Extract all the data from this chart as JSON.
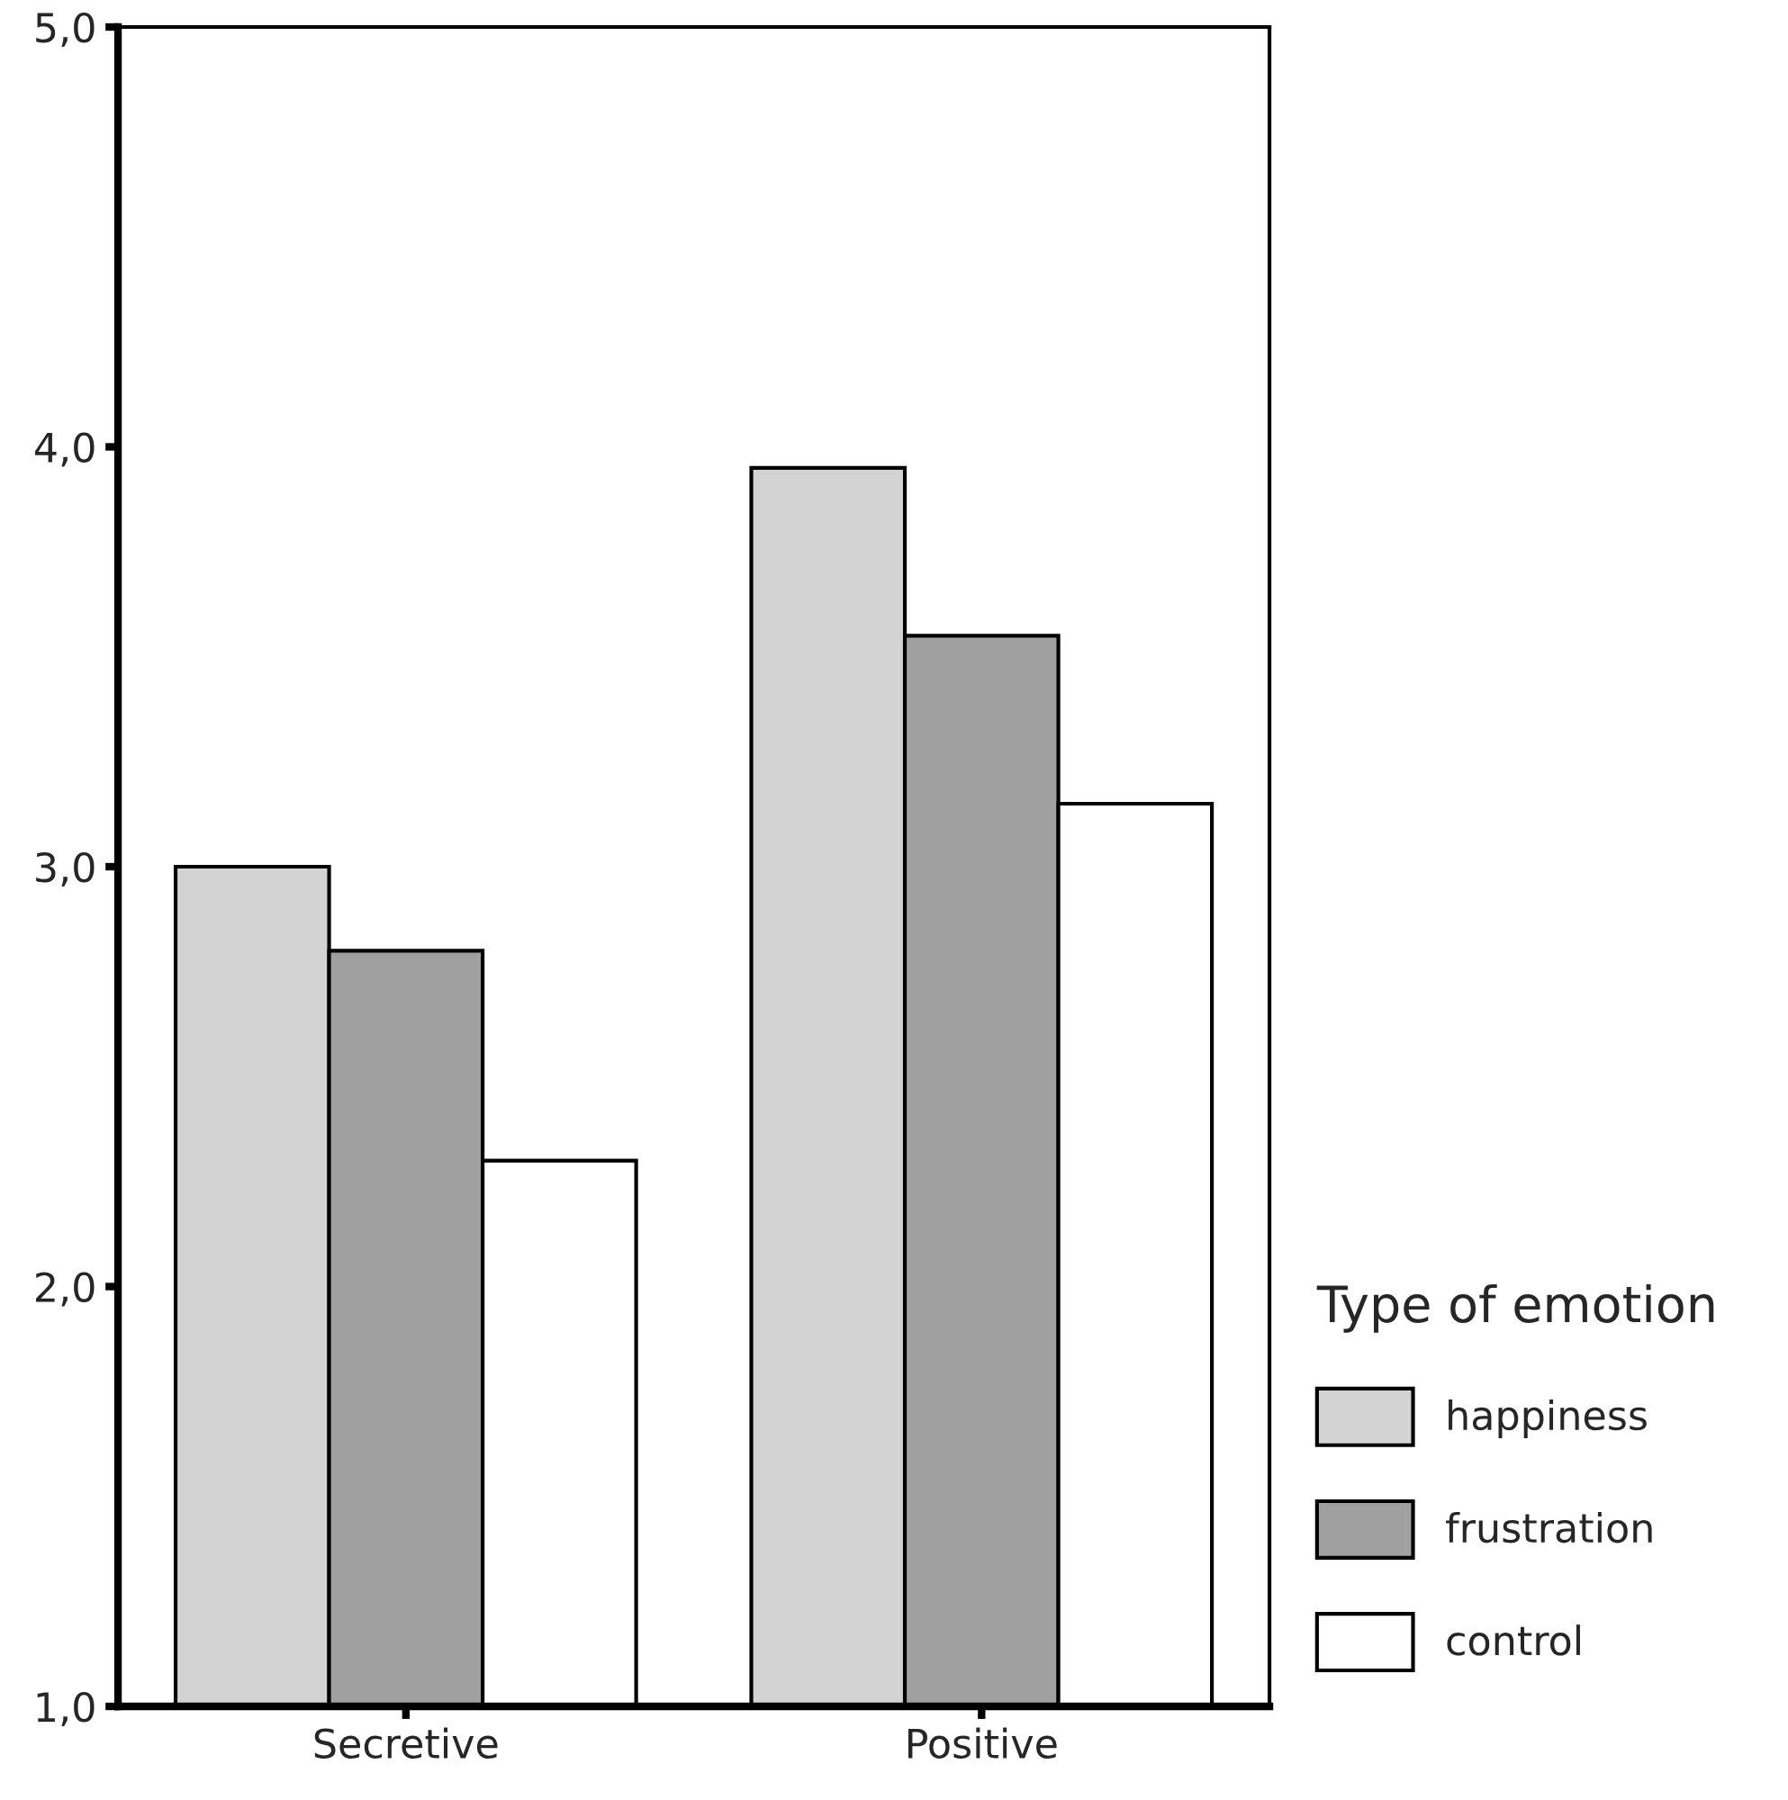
{
  "chart_data": {
    "type": "bar",
    "categories": [
      "Secretive",
      "Positive"
    ],
    "series": [
      {
        "name": "happiness",
        "color": "#d3d3d3",
        "values": [
          3.0,
          3.95
        ]
      },
      {
        "name": "frustration",
        "color": "#a0a0a0",
        "values": [
          2.8,
          3.55
        ]
      },
      {
        "name": "control",
        "color": "#ffffff",
        "values": [
          2.3,
          3.15
        ]
      }
    ],
    "ylim": [
      1.0,
      5.0
    ],
    "yticks": [
      {
        "value": 1.0,
        "label": "1,0"
      },
      {
        "value": 2.0,
        "label": "2,0"
      },
      {
        "value": 3.0,
        "label": "3,0"
      },
      {
        "value": 4.0,
        "label": "4,0"
      },
      {
        "value": 5.0,
        "label": "5,0"
      }
    ],
    "legend_title": "Type of emotion",
    "legend": "right",
    "grid": false
  }
}
